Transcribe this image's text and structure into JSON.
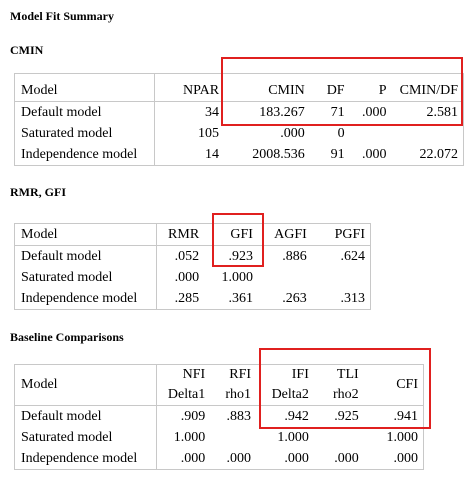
{
  "title": "Model Fit Summary",
  "cmin": {
    "heading": "CMIN",
    "columns": [
      "Model",
      "NPAR",
      "CMIN",
      "DF",
      "P",
      "CMIN/DF"
    ],
    "rows": [
      [
        "Default model",
        "34",
        "183.267",
        "71",
        ".000",
        "2.581"
      ],
      [
        "Saturated model",
        "105",
        ".000",
        "0",
        "",
        ""
      ],
      [
        "Independence model",
        "14",
        "2008.536",
        "91",
        ".000",
        "22.072"
      ]
    ]
  },
  "rmr": {
    "heading": "RMR, GFI",
    "columns": [
      "Model",
      "RMR",
      "GFI",
      "AGFI",
      "PGFI"
    ],
    "rows": [
      [
        "Default model",
        ".052",
        ".923",
        ".886",
        ".624"
      ],
      [
        "Saturated model",
        ".000",
        "1.000",
        "",
        ""
      ],
      [
        "Independence model",
        ".285",
        ".361",
        ".263",
        ".313"
      ]
    ]
  },
  "baseline": {
    "heading": "Baseline Comparisons",
    "columns": [
      {
        "l1": "",
        "l2": "Model"
      },
      {
        "l1": "NFI",
        "l2": "Delta1"
      },
      {
        "l1": "RFI",
        "l2": "rho1"
      },
      {
        "l1": "IFI",
        "l2": "Delta2"
      },
      {
        "l1": "TLI",
        "l2": "rho2"
      },
      {
        "l1": "",
        "l2": "CFI"
      }
    ],
    "rows": [
      [
        "Default model",
        ".909",
        ".883",
        ".942",
        ".925",
        ".941"
      ],
      [
        "Saturated model",
        "1.000",
        "",
        "1.000",
        "",
        "1.000"
      ],
      [
        "Independence model",
        ".000",
        ".000",
        ".000",
        ".000",
        ".000"
      ]
    ]
  },
  "highlight_color": "#e0201f"
}
